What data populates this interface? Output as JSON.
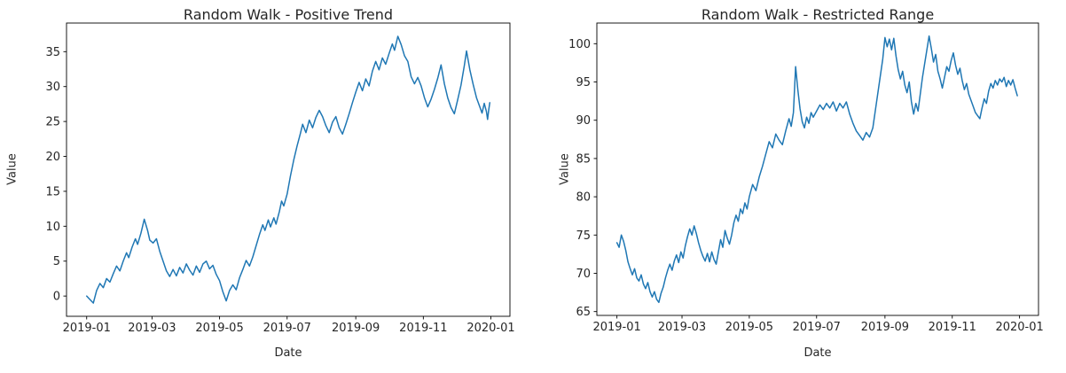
{
  "figure": {
    "background": "#ffffff",
    "axes_color": "#000000",
    "text_color": "#262626"
  },
  "chart_data": [
    {
      "type": "line",
      "title": "Random Walk - Positive Trend",
      "xlabel": "Date",
      "ylabel": "Value",
      "line_color": "#1f77b4",
      "grid": false,
      "legend": "none",
      "x_tick_labels": [
        "2019-01",
        "2019-03",
        "2019-05",
        "2019-07",
        "2019-09",
        "2019-11",
        "2020-01"
      ],
      "x_tick_days": [
        0,
        59,
        120,
        181,
        243,
        304,
        365
      ],
      "y_ticks": [
        0,
        5,
        10,
        15,
        20,
        25,
        30,
        35
      ],
      "xlim": [
        -18.2,
        382.2
      ],
      "ylim": [
        -2.9,
        39.1
      ],
      "points": [
        [
          0,
          0
        ],
        [
          3,
          -0.5
        ],
        [
          6,
          -1
        ],
        [
          9,
          0.8
        ],
        [
          12,
          1.8
        ],
        [
          15,
          1.2
        ],
        [
          18,
          2.5
        ],
        [
          21,
          2
        ],
        [
          24,
          3.2
        ],
        [
          27,
          4.3
        ],
        [
          30,
          3.6
        ],
        [
          33,
          5
        ],
        [
          36,
          6.2
        ],
        [
          38,
          5.5
        ],
        [
          41,
          7
        ],
        [
          44,
          8.2
        ],
        [
          46,
          7.4
        ],
        [
          49,
          9
        ],
        [
          52,
          11
        ],
        [
          55,
          9.4
        ],
        [
          57,
          8
        ],
        [
          60,
          7.6
        ],
        [
          63,
          8.2
        ],
        [
          66,
          6.4
        ],
        [
          69,
          5
        ],
        [
          72,
          3.6
        ],
        [
          75,
          2.8
        ],
        [
          78,
          3.8
        ],
        [
          81,
          2.9
        ],
        [
          84,
          4.1
        ],
        [
          87,
          3.3
        ],
        [
          90,
          4.6
        ],
        [
          93,
          3.7
        ],
        [
          96,
          3
        ],
        [
          99,
          4.3
        ],
        [
          102,
          3.4
        ],
        [
          105,
          4.6
        ],
        [
          108,
          5
        ],
        [
          111,
          3.9
        ],
        [
          114,
          4.4
        ],
        [
          117,
          3.1
        ],
        [
          120,
          2.2
        ],
        [
          123,
          0.6
        ],
        [
          126,
          -0.7
        ],
        [
          129,
          0.8
        ],
        [
          132,
          1.6
        ],
        [
          135,
          0.9
        ],
        [
          138,
          2.6
        ],
        [
          141,
          3.8
        ],
        [
          144,
          5.1
        ],
        [
          147,
          4.3
        ],
        [
          150,
          5.6
        ],
        [
          153,
          7.2
        ],
        [
          156,
          8.8
        ],
        [
          159,
          10.2
        ],
        [
          161,
          9.4
        ],
        [
          164,
          10.9
        ],
        [
          166,
          9.9
        ],
        [
          169,
          11.2
        ],
        [
          171,
          10.3
        ],
        [
          174,
          12.1
        ],
        [
          176,
          13.6
        ],
        [
          178,
          12.9
        ],
        [
          181,
          14.6
        ],
        [
          184,
          17.2
        ],
        [
          187,
          19.5
        ],
        [
          190,
          21.5
        ],
        [
          193,
          23.3
        ],
        [
          195,
          24.6
        ],
        [
          198,
          23.4
        ],
        [
          201,
          25.2
        ],
        [
          204,
          24.1
        ],
        [
          207,
          25.6
        ],
        [
          210,
          26.6
        ],
        [
          213,
          25.7
        ],
        [
          216,
          24.4
        ],
        [
          219,
          23.4
        ],
        [
          222,
          24.9
        ],
        [
          225,
          25.7
        ],
        [
          228,
          24.1
        ],
        [
          231,
          23.2
        ],
        [
          234,
          24.6
        ],
        [
          237,
          26.1
        ],
        [
          240,
          27.7
        ],
        [
          243,
          29.2
        ],
        [
          246,
          30.6
        ],
        [
          249,
          29.4
        ],
        [
          252,
          31.1
        ],
        [
          255,
          30.1
        ],
        [
          258,
          32.2
        ],
        [
          261,
          33.6
        ],
        [
          264,
          32.4
        ],
        [
          267,
          34.1
        ],
        [
          270,
          33.2
        ],
        [
          273,
          34.7
        ],
        [
          276,
          36.1
        ],
        [
          278,
          35.2
        ],
        [
          281,
          37.2
        ],
        [
          284,
          36
        ],
        [
          287,
          34.4
        ],
        [
          290,
          33.6
        ],
        [
          293,
          31.4
        ],
        [
          296,
          30.4
        ],
        [
          299,
          31.3
        ],
        [
          302,
          30.1
        ],
        [
          305,
          28.4
        ],
        [
          308,
          27.1
        ],
        [
          311,
          28.2
        ],
        [
          314,
          29.6
        ],
        [
          317,
          31.2
        ],
        [
          320,
          33.1
        ],
        [
          323,
          30.4
        ],
        [
          326,
          28.4
        ],
        [
          329,
          27
        ],
        [
          332,
          26.1
        ],
        [
          335,
          28.1
        ],
        [
          338,
          30.2
        ],
        [
          341,
          33
        ],
        [
          343,
          35.1
        ],
        [
          346,
          32.4
        ],
        [
          349,
          30.3
        ],
        [
          352,
          28.4
        ],
        [
          355,
          27.1
        ],
        [
          357,
          26.2
        ],
        [
          359,
          27.6
        ],
        [
          361,
          26.4
        ],
        [
          362,
          25.3
        ],
        [
          363,
          26.6
        ],
        [
          364,
          27.7
        ]
      ]
    },
    {
      "type": "line",
      "title": "Random Walk - Restricted Range",
      "xlabel": "Date",
      "ylabel": "Value",
      "line_color": "#1f77b4",
      "grid": false,
      "legend": "none",
      "x_tick_labels": [
        "2019-01",
        "2019-03",
        "2019-05",
        "2019-07",
        "2019-09",
        "2019-11",
        "2020-01"
      ],
      "x_tick_days": [
        0,
        59,
        120,
        181,
        243,
        304,
        365
      ],
      "y_ticks": [
        65,
        70,
        75,
        80,
        85,
        90,
        95,
        100
      ],
      "xlim": [
        -18.2,
        382.2
      ],
      "ylim": [
        64.5,
        102.7
      ],
      "points": [
        [
          0,
          74
        ],
        [
          2,
          73.4
        ],
        [
          4,
          75
        ],
        [
          6,
          74.2
        ],
        [
          8,
          73
        ],
        [
          10,
          71.5
        ],
        [
          12,
          70.6
        ],
        [
          14,
          69.8
        ],
        [
          16,
          70.6
        ],
        [
          18,
          69.4
        ],
        [
          20,
          69
        ],
        [
          22,
          69.8
        ],
        [
          24,
          68.6
        ],
        [
          26,
          68
        ],
        [
          28,
          68.8
        ],
        [
          30,
          67.6
        ],
        [
          32,
          66.9
        ],
        [
          34,
          67.6
        ],
        [
          36,
          66.6
        ],
        [
          38,
          66.2
        ],
        [
          40,
          67.4
        ],
        [
          42,
          68.2
        ],
        [
          44,
          69.4
        ],
        [
          46,
          70.4
        ],
        [
          48,
          71.2
        ],
        [
          50,
          70.4
        ],
        [
          52,
          71.6
        ],
        [
          54,
          72.4
        ],
        [
          56,
          71.4
        ],
        [
          58,
          72.8
        ],
        [
          60,
          72
        ],
        [
          62,
          73.6
        ],
        [
          64,
          74.8
        ],
        [
          66,
          75.8
        ],
        [
          68,
          75
        ],
        [
          70,
          76.2
        ],
        [
          72,
          75.2
        ],
        [
          74,
          74
        ],
        [
          76,
          73
        ],
        [
          78,
          72.2
        ],
        [
          80,
          71.6
        ],
        [
          82,
          72.6
        ],
        [
          84,
          71.5
        ],
        [
          86,
          72.8
        ],
        [
          88,
          71.8
        ],
        [
          90,
          71.2
        ],
        [
          92,
          72.8
        ],
        [
          94,
          74.4
        ],
        [
          96,
          73.4
        ],
        [
          98,
          75.6
        ],
        [
          100,
          74.6
        ],
        [
          102,
          73.8
        ],
        [
          104,
          75
        ],
        [
          106,
          76.6
        ],
        [
          108,
          77.6
        ],
        [
          110,
          76.8
        ],
        [
          112,
          78.4
        ],
        [
          114,
          77.8
        ],
        [
          116,
          79.2
        ],
        [
          118,
          78.4
        ],
        [
          120,
          80
        ],
        [
          123,
          81.6
        ],
        [
          126,
          80.8
        ],
        [
          129,
          82.6
        ],
        [
          132,
          84
        ],
        [
          135,
          85.6
        ],
        [
          138,
          87.2
        ],
        [
          141,
          86.4
        ],
        [
          144,
          88.2
        ],
        [
          147,
          87.4
        ],
        [
          150,
          86.8
        ],
        [
          153,
          88.6
        ],
        [
          156,
          90.2
        ],
        [
          158,
          89.2
        ],
        [
          160,
          91
        ],
        [
          162,
          97
        ],
        [
          164,
          94
        ],
        [
          166,
          91.5
        ],
        [
          168,
          89.8
        ],
        [
          170,
          89
        ],
        [
          172,
          90.4
        ],
        [
          174,
          89.6
        ],
        [
          176,
          91
        ],
        [
          178,
          90.4
        ],
        [
          181,
          91.2
        ],
        [
          184,
          92
        ],
        [
          187,
          91.4
        ],
        [
          190,
          92.2
        ],
        [
          193,
          91.6
        ],
        [
          196,
          92.4
        ],
        [
          199,
          91.2
        ],
        [
          202,
          92.2
        ],
        [
          205,
          91.6
        ],
        [
          208,
          92.4
        ],
        [
          211,
          90.8
        ],
        [
          214,
          89.6
        ],
        [
          217,
          88.6
        ],
        [
          220,
          88
        ],
        [
          223,
          87.4
        ],
        [
          226,
          88.4
        ],
        [
          229,
          87.8
        ],
        [
          232,
          89
        ],
        [
          235,
          92
        ],
        [
          238,
          95
        ],
        [
          241,
          98
        ],
        [
          243,
          100.8
        ],
        [
          245,
          99.6
        ],
        [
          247,
          100.6
        ],
        [
          249,
          99.2
        ],
        [
          251,
          100.7
        ],
        [
          253,
          98.4
        ],
        [
          255,
          96.6
        ],
        [
          257,
          95.4
        ],
        [
          259,
          96.4
        ],
        [
          261,
          94.6
        ],
        [
          263,
          93.6
        ],
        [
          265,
          95
        ],
        [
          267,
          92.4
        ],
        [
          269,
          90.8
        ],
        [
          271,
          92.2
        ],
        [
          273,
          91.2
        ],
        [
          275,
          93.4
        ],
        [
          277,
          95.6
        ],
        [
          279,
          97.4
        ],
        [
          281,
          99.2
        ],
        [
          283,
          101
        ],
        [
          285,
          99.4
        ],
        [
          287,
          97.6
        ],
        [
          289,
          98.6
        ],
        [
          291,
          96.4
        ],
        [
          293,
          95.4
        ],
        [
          295,
          94.2
        ],
        [
          297,
          95.6
        ],
        [
          299,
          97
        ],
        [
          301,
          96.4
        ],
        [
          303,
          97.8
        ],
        [
          305,
          98.8
        ],
        [
          307,
          97.2
        ],
        [
          309,
          96
        ],
        [
          311,
          96.8
        ],
        [
          313,
          95.2
        ],
        [
          315,
          94
        ],
        [
          317,
          94.8
        ],
        [
          319,
          93.4
        ],
        [
          321,
          92.6
        ],
        [
          323,
          91.8
        ],
        [
          325,
          91
        ],
        [
          327,
          90.6
        ],
        [
          329,
          90.2
        ],
        [
          331,
          91.6
        ],
        [
          333,
          92.8
        ],
        [
          335,
          92.2
        ],
        [
          337,
          93.8
        ],
        [
          339,
          94.8
        ],
        [
          341,
          94.2
        ],
        [
          343,
          95.2
        ],
        [
          345,
          94.6
        ],
        [
          347,
          95.4
        ],
        [
          349,
          95
        ],
        [
          351,
          95.6
        ],
        [
          353,
          94.4
        ],
        [
          355,
          95.2
        ],
        [
          357,
          94.6
        ],
        [
          359,
          95.3
        ],
        [
          361,
          94.2
        ],
        [
          363,
          93.2
        ]
      ]
    }
  ]
}
